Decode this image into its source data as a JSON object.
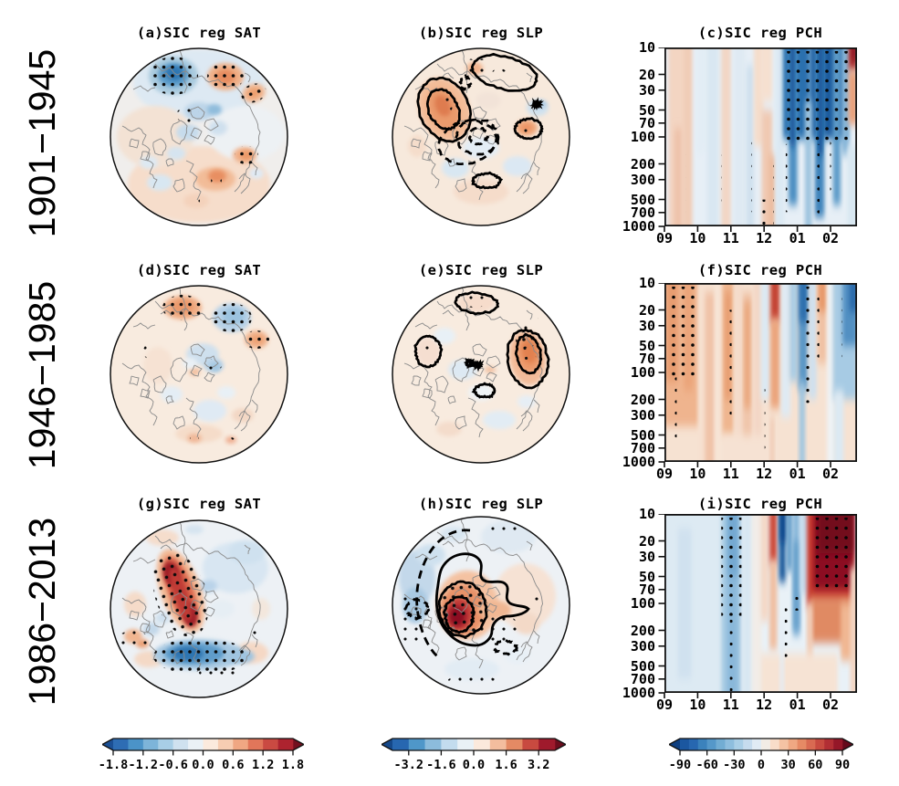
{
  "figure": {
    "rows": [
      {
        "label": "1901−1945"
      },
      {
        "label": "1946−1985"
      },
      {
        "label": "1986−2013"
      }
    ],
    "panels": [
      {
        "id": "a",
        "title": "(a)SIC reg SAT"
      },
      {
        "id": "b",
        "title": "(b)SIC reg SLP"
      },
      {
        "id": "c",
        "title": "(c)SIC reg PCH"
      },
      {
        "id": "d",
        "title": "(d)SIC reg SAT"
      },
      {
        "id": "e",
        "title": "(e)SIC reg SLP"
      },
      {
        "id": "f",
        "title": "(f)SIC reg PCH"
      },
      {
        "id": "g",
        "title": "(g)SIC reg SAT"
      },
      {
        "id": "h",
        "title": "(h)SIC reg SLP"
      },
      {
        "id": "i",
        "title": "(i)SIC reg PCH"
      }
    ]
  },
  "heatmap_axes": {
    "y_labels": [
      "10",
      "20",
      "30",
      "50",
      "70",
      "100",
      "200",
      "300",
      "500",
      "700",
      "1000"
    ],
    "x_labels": [
      "09",
      "10",
      "11",
      "12",
      "01",
      "02"
    ]
  },
  "colorbars": [
    {
      "id": "sat",
      "tick_labels": [
        "-1.8",
        "-1.2",
        "-0.6",
        "0.0",
        "0.6",
        "1.2",
        "1.8"
      ],
      "segments": [
        "#2e6db4",
        "#4b93c8",
        "#7db4d9",
        "#a8cee6",
        "#cfe1ef",
        "#eaf1f6",
        "#fbeadd",
        "#f7cdb2",
        "#f0a783",
        "#e1765a",
        "#ca4a42",
        "#ad232f"
      ],
      "arrow_left": "#1b4f94",
      "arrow_right": "#73101f"
    },
    {
      "id": "slp",
      "tick_labels": [
        "-3.2",
        "-1.6",
        "0.0",
        "1.6",
        "3.2"
      ],
      "segments": [
        "#2767b0",
        "#4f97c9",
        "#8cbcdc",
        "#c3dcee",
        "#e9f1f6",
        "#fbe9dc",
        "#f3bd9e",
        "#e48a64",
        "#c84a40",
        "#9f1a2c"
      ],
      "arrow_left": "#154889",
      "arrow_right": "#6b0d1d"
    },
    {
      "id": "pch",
      "tick_labels": [
        "-90",
        "-60",
        "-30",
        "0",
        "30",
        "60",
        "90"
      ],
      "segments": [
        "#1b57a0",
        "#2767b0",
        "#3b82bc",
        "#5598c9",
        "#72add3",
        "#8ebede",
        "#aacfe7",
        "#c6dcee",
        "#e0ebf4",
        "#f2ece5",
        "#f9ddc9",
        "#f5c3a4",
        "#efa883",
        "#e68a65",
        "#d96a52",
        "#c84a40",
        "#b22e34",
        "#951728"
      ],
      "arrow_left": "#0f3f80",
      "arrow_right": "#640a1b"
    }
  ],
  "chart_data": {
    "type": "heatmap",
    "description": "Nine-panel figure: regressions onto sea-ice concentration (SIC) for three epochs (rows). Column 1: SAT regression maps (north polar stereographic). Column 2: SLP regression maps with solid (positive) and dashed (negative) black contours. Column 3: polar cap height (PCH) regression, month vs pressure sections. Black stippling marks statistical significance.",
    "epochs": [
      "1901-1945",
      "1946-1985",
      "1986-2013"
    ],
    "columns": [
      "SIC reg SAT",
      "SIC reg SLP",
      "SIC reg PCH"
    ],
    "colorbar_ranges": {
      "sat": {
        "ticks": [
          -1.8,
          -1.2,
          -0.6,
          0.0,
          0.6,
          1.2,
          1.8
        ],
        "n_segments": 12,
        "palette": "diverging blue-white-red"
      },
      "slp": {
        "ticks": [
          -3.2,
          -1.6,
          0.0,
          1.6,
          3.2
        ],
        "n_segments": 10,
        "palette": "diverging blue-white-red"
      },
      "pch": {
        "ticks": [
          -90,
          -60,
          -30,
          0,
          30,
          60,
          90
        ],
        "n_segments": 18,
        "palette": "diverging blue-white-red"
      }
    },
    "pch_axes": {
      "x_months": [
        "09",
        "10",
        "11",
        "12",
        "01",
        "02"
      ],
      "y_pressure_hPa": [
        10,
        20,
        30,
        50,
        70,
        100,
        200,
        300,
        500,
        700,
        1000
      ],
      "y_scale": "log"
    },
    "panel_features": {
      "a": "Stippled negative SAT center at top (Arctic Canada sector, to about -1.2); stippled positive centers upper-right and right (~+0.9); weak positive band across lower half.",
      "b": "Positive SLP center with two solid contours on west side over orange shading (stippled); concentric dashed negative contours over the central Arctic; solid positive contours top-right, east and bottom.",
      "c": "Strong negative PCH response Jan-Feb from 10 to ~300 hPa (dense stippling, < -90); narrow positive sliver at top-right edge; weak alternating columns Sep-Dec with sparse stippled columns in lower troposphere.",
      "d": "Weak epoch: stippled positive SAT patch top-left, stippled negative patch top-right, stippled positive patch right; faint blue center.",
      "e": "Solid positive SLP contours top-centre and upper-left; large solid contour pair on east side enclosing stippled orange center (~+3); weak shading elsewhere.",
      "f": "Positive PCH response Sep-Oct through full depth (dense stippling, ~+60); alternating stippled positive columns Nov-Dec; negative PCH late Jan-Feb at upper levels with stippled column.",
      "g": "Strong stippled positive SAT (>+1.8) elongated over Greenland/Arctic sector; strong stippled negative band (< -1.2) across the mid-latitude bottom half; small positive patches on left.",
      "h": "Strong stippled positive SLP center (~+3.2) over the central Arctic with three nested solid contours and a point extending east; long dashed negative contour arc over blue shading to the northwest; small dashed ring southeast.",
      "i": "Stippled negative PCH column in Oct through full depth (~-60); strong stippled positive PCH Jan-Feb from 10 to ~200 hPa (>+90) extending down and right; weak elsewhere."
    }
  }
}
